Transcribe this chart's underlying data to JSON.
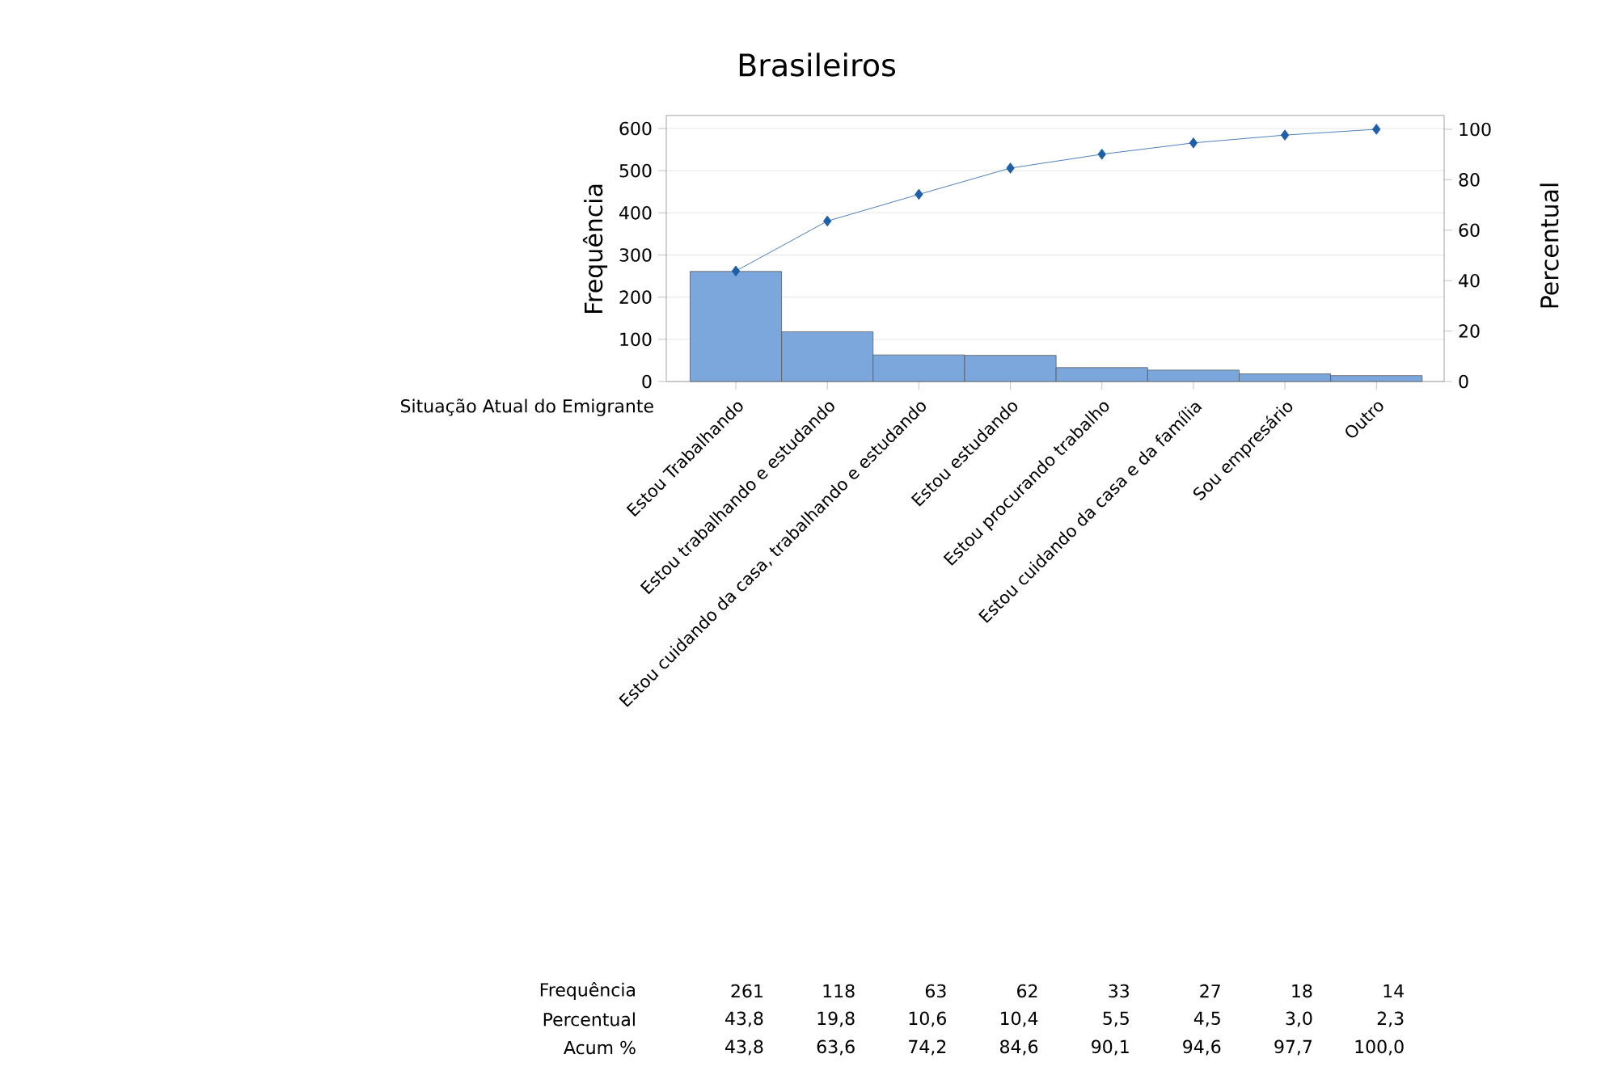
{
  "chart_data": {
    "type": "bar",
    "title": "Brasileiros",
    "xlabel": "Situação Atual do Emigrante",
    "ylabel": "Frequência",
    "y2label": "Percentual",
    "categories": [
      "Estou Trabalhando",
      "Estou trabalhando e estudando",
      "Estou cuidando da casa, trabalhando e estudando",
      "Estou estudando",
      "Estou procurando trabalho",
      "Estou cuidando da casa e da família",
      "Sou empresário",
      "Outro"
    ],
    "series": [
      {
        "color": "#7ba7dc",
        "values": [
          261,
          118,
          63,
          62,
          33,
          27,
          18,
          14
        ],
        "value_labels": [
          "261",
          "118",
          "63",
          "62",
          "33",
          "27",
          "18",
          "14"
        ]
      },
      {
        "type": "line",
        "axis": "y2",
        "color": "#1f5fa8",
        "values": [
          43.8,
          63.6,
          74.2,
          84.6,
          90.1,
          94.6,
          97.7,
          100.0
        ],
        "value_labels": [
          "43,8",
          "63,6",
          "74,2",
          "84,6",
          "90,1",
          "94,6",
          "97,7",
          "100,0"
        ]
      }
    ],
    "annotations": [
      "Frequência",
      "Percentual",
      "Acum %",
      "43,8",
      "19,8",
      "10,6",
      "10,4",
      "5,5",
      "4,5",
      "3,0",
      "2,3"
    ],
    "ylim": [
      0,
      631
    ],
    "yticks": [
      0,
      100,
      200,
      300,
      400,
      500,
      600
    ],
    "y2lim": [
      0,
      105.5
    ],
    "y2ticks": [
      0,
      20,
      40,
      60,
      80,
      100
    ],
    "grid": "y",
    "marker": "diamond"
  }
}
